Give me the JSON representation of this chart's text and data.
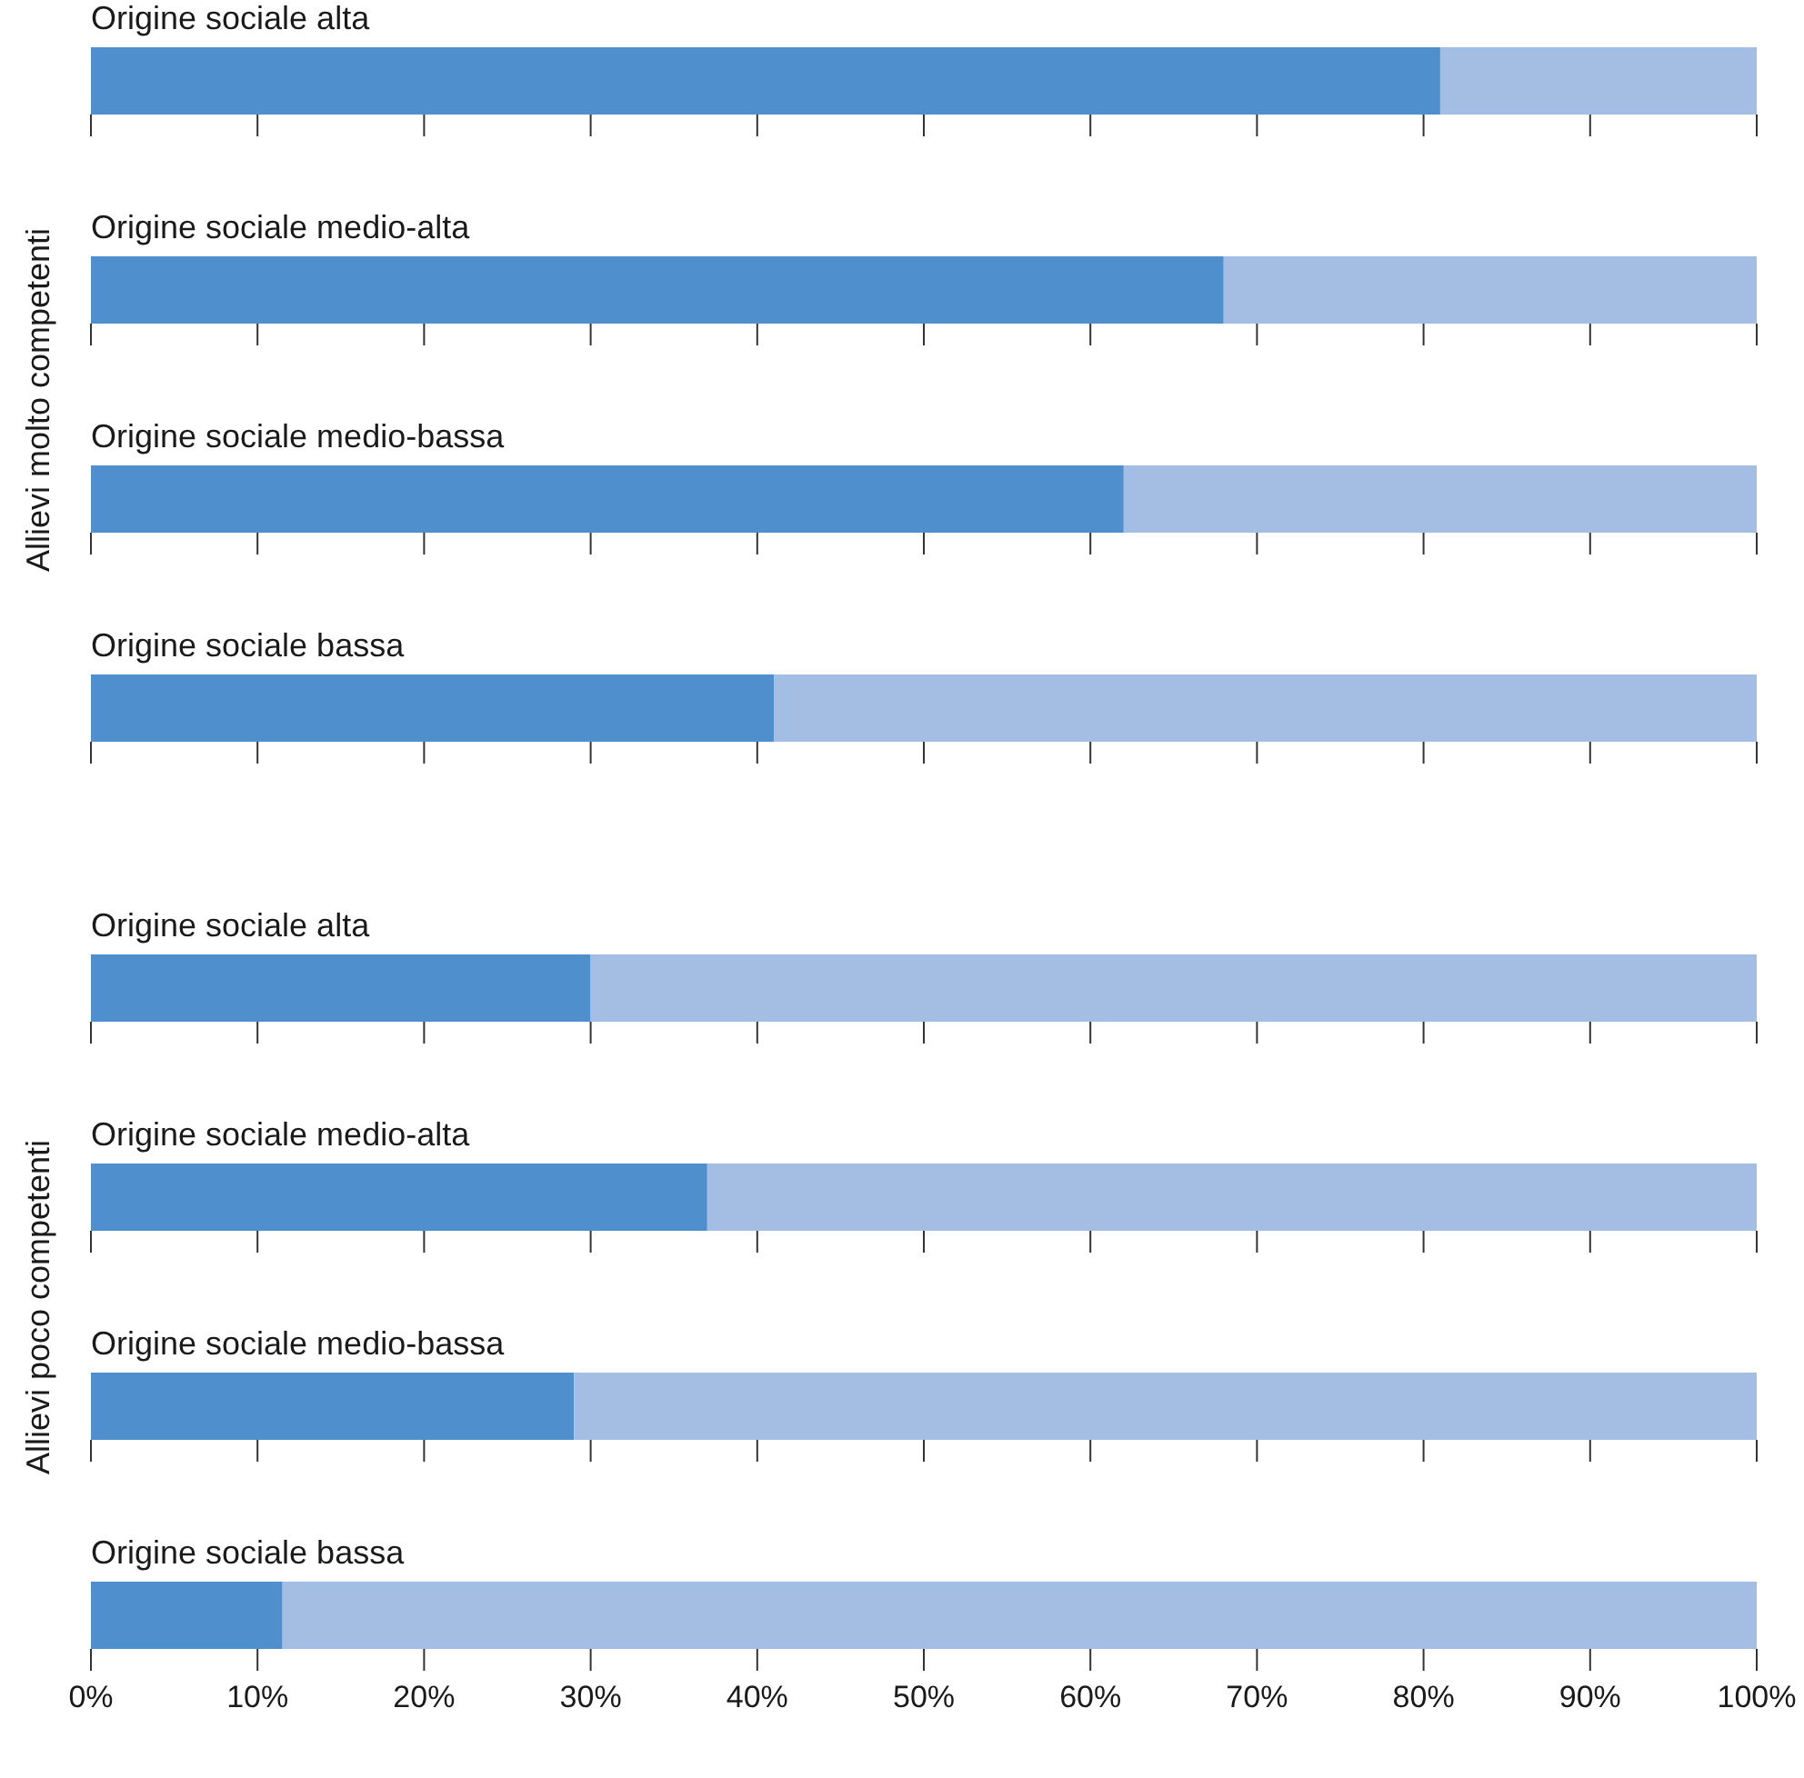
{
  "chart_data": [
    {
      "type": "bar",
      "orientation": "horizontal",
      "stacked": true,
      "ylabel": "Allievi molto competenti",
      "categories": [
        "Origine sociale alta",
        "Origine sociale medio-alta",
        "Origine sociale medio-bassa",
        "Origine sociale bassa"
      ],
      "series": [
        {
          "color": "#508fce",
          "values": [
            81,
            68,
            62,
            41
          ]
        },
        {
          "color": "#a3bde3",
          "values": [
            19,
            32,
            38,
            59
          ]
        }
      ],
      "xlim": [
        0,
        100
      ],
      "xticks": [
        {
          "value": 0,
          "label": null
        },
        {
          "value": 10,
          "label": null
        },
        {
          "value": 20,
          "label": null
        },
        {
          "value": 30,
          "label": null
        },
        {
          "value": 40,
          "label": null
        },
        {
          "value": 50,
          "label": null
        },
        {
          "value": 60,
          "label": null
        },
        {
          "value": 70,
          "label": null
        },
        {
          "value": 80,
          "label": null
        },
        {
          "value": 90,
          "label": null
        },
        {
          "value": 100,
          "label": null
        }
      ],
      "tick_labels": "y"
    },
    {
      "type": "bar",
      "orientation": "horizontal",
      "stacked": true,
      "ylabel": "Allievi poco competenti",
      "categories": [
        "Origine sociale alta",
        "Origine sociale medio-alta",
        "Origine sociale medio-bassa",
        "Origine sociale bassa"
      ],
      "series": [
        {
          "color": "#508fce",
          "values": [
            30,
            37,
            29,
            11.5
          ]
        },
        {
          "color": "#a3bde3",
          "values": [
            70,
            63,
            71,
            88.5
          ]
        }
      ],
      "xlim": [
        0,
        100
      ],
      "xticks": [
        {
          "value": 0,
          "label": "0%"
        },
        {
          "value": 10,
          "label": "10%"
        },
        {
          "value": 20,
          "label": "20%"
        },
        {
          "value": 30,
          "label": "30%"
        },
        {
          "value": 40,
          "label": "40%"
        },
        {
          "value": 50,
          "label": "50%"
        },
        {
          "value": 60,
          "label": "60%"
        },
        {
          "value": 70,
          "label": "70%"
        },
        {
          "value": 80,
          "label": "80%"
        },
        {
          "value": 90,
          "label": "90%"
        },
        {
          "value": 100,
          "label": "100%"
        }
      ]
    }
  ]
}
